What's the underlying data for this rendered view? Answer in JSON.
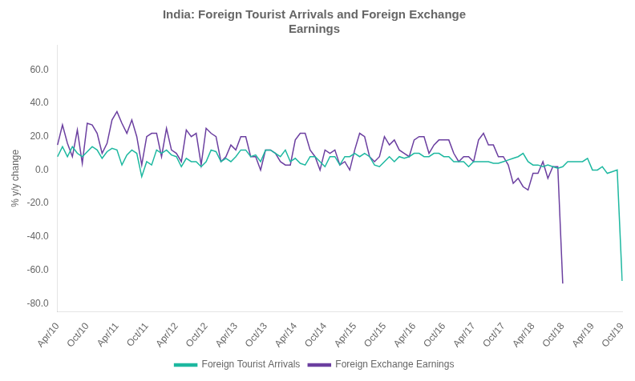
{
  "chart_data": {
    "type": "line",
    "title": "India: Foreign Tourist Arrivals and Foreign Exchange\nEarnings",
    "ylabel": "% y/y change",
    "categories": [
      "Apr/10",
      null,
      null,
      null,
      null,
      null,
      "Oct/10",
      null,
      null,
      null,
      null,
      null,
      "Apr/11",
      null,
      null,
      null,
      null,
      null,
      "Oct/11",
      null,
      null,
      null,
      null,
      null,
      "Apr/12",
      null,
      null,
      null,
      null,
      null,
      "Oct/12",
      null,
      null,
      null,
      null,
      null,
      "Apr/13",
      null,
      null,
      null,
      null,
      null,
      "Oct/13",
      null,
      null,
      null,
      null,
      null,
      "Apr/14",
      null,
      null,
      null,
      null,
      null,
      "Oct/14",
      null,
      null,
      null,
      null,
      null,
      "Apr/15",
      null,
      null,
      null,
      null,
      null,
      "Oct/15",
      null,
      null,
      null,
      null,
      null,
      "Apr/16",
      null,
      null,
      null,
      null,
      null,
      "Oct/16",
      null,
      null,
      null,
      null,
      null,
      "Apr/17",
      null,
      null,
      null,
      null,
      null,
      "Oct/17",
      null,
      null,
      null,
      null,
      null,
      "Apr/18",
      null,
      null,
      null,
      null,
      null,
      "Oct/18",
      null,
      null,
      null,
      null,
      null,
      "Apr/19",
      null,
      null,
      null,
      null,
      null,
      "Oct/19"
    ],
    "series": [
      {
        "name": "Foreign Tourist Arrivals",
        "color": "#1db8a0",
        "values": [
          8.0,
          14.0,
          8.0,
          14.0,
          10.0,
          8.0,
          11.0,
          14.0,
          12.0,
          7.0,
          11.0,
          13.0,
          12.0,
          3.0,
          9.0,
          12.0,
          10.0,
          -4.0,
          5.0,
          3.0,
          12.0,
          10.0,
          12.0,
          9.0,
          8.0,
          2.0,
          7.0,
          5.0,
          5.0,
          2.0,
          5.0,
          12.0,
          11.0,
          5.0,
          7.0,
          5.0,
          8.0,
          12.0,
          12.0,
          8.0,
          9.0,
          5.0,
          12.0,
          12.0,
          10.0,
          8.0,
          12.0,
          5.0,
          7.0,
          4.0,
          3.0,
          8.0,
          8.0,
          5.0,
          2.0,
          8.0,
          8.0,
          3.0,
          8.0,
          8.0,
          10.0,
          8.0,
          10.0,
          8.0,
          3.0,
          2.0,
          5.0,
          8.0,
          5.0,
          8.0,
          7.0,
          8.0,
          10.0,
          10.0,
          8.0,
          8.0,
          10.0,
          10.0,
          8.0,
          8.0,
          5.0,
          5.0,
          5.0,
          2.0,
          5.0,
          5.0,
          5.0,
          5.0,
          4.0,
          4.0,
          5.0,
          6.0,
          7.0,
          8.0,
          10.0,
          5.0,
          3.0,
          3.0,
          2.0,
          3.0,
          2.0,
          1.0,
          2.0,
          5.0,
          5.0,
          5.0,
          5.0,
          7.0,
          0.0,
          0.0,
          2.0,
          -2.0,
          -1.0,
          0.0,
          -66.5
        ]
      },
      {
        "name": "Foreign Exchange Earnings",
        "color": "#6b3fa0",
        "values": [
          15.0,
          27.0,
          16.0,
          8.0,
          24.0,
          4.0,
          28.0,
          27.0,
          22.0,
          10.0,
          16.0,
          30.0,
          35.0,
          28.0,
          22.0,
          30.0,
          20.0,
          3.0,
          20.0,
          22.0,
          22.0,
          8.0,
          25.0,
          12.0,
          10.0,
          5.0,
          24.0,
          20.0,
          22.0,
          3.0,
          25.0,
          22.0,
          20.0,
          5.0,
          8.0,
          15.0,
          12.0,
          20.0,
          20.0,
          8.0,
          8.0,
          0.0,
          12.0,
          12.0,
          10.0,
          5.0,
          3.0,
          3.0,
          18.0,
          22.0,
          22.0,
          12.0,
          8.0,
          0.0,
          12.0,
          10.0,
          12.0,
          3.0,
          5.0,
          0.0,
          12.0,
          22.0,
          20.0,
          8.0,
          5.0,
          8.0,
          20.0,
          15.0,
          18.0,
          12.0,
          10.0,
          8.0,
          18.0,
          20.0,
          20.0,
          10.0,
          15.0,
          18.0,
          18.0,
          18.0,
          10.0,
          5.0,
          8.0,
          8.0,
          5.0,
          18.0,
          22.0,
          15.0,
          15.0,
          8.0,
          8.0,
          3.0,
          -8.0,
          -5.0,
          -10.0,
          -12.0,
          -2.0,
          -2.0,
          5.0,
          -5.0,
          2.0,
          2.0,
          -68.0,
          null,
          null,
          null,
          null,
          null,
          null,
          null,
          null,
          null,
          null,
          null,
          null
        ]
      }
    ],
    "ylim": [
      -85,
      75
    ],
    "yticks": [
      {
        "value": -80,
        "label": "-80.0"
      },
      {
        "value": -60,
        "label": "-60.0"
      },
      {
        "value": -40,
        "label": "-40.0"
      },
      {
        "value": -20,
        "label": "-20.0"
      },
      {
        "value": 0,
        "label": "0.0"
      },
      {
        "value": 20,
        "label": "20.0"
      },
      {
        "value": 40,
        "label": "40.0"
      },
      {
        "value": 60,
        "label": "60.0"
      }
    ],
    "grid": false,
    "legend": "bottom"
  }
}
